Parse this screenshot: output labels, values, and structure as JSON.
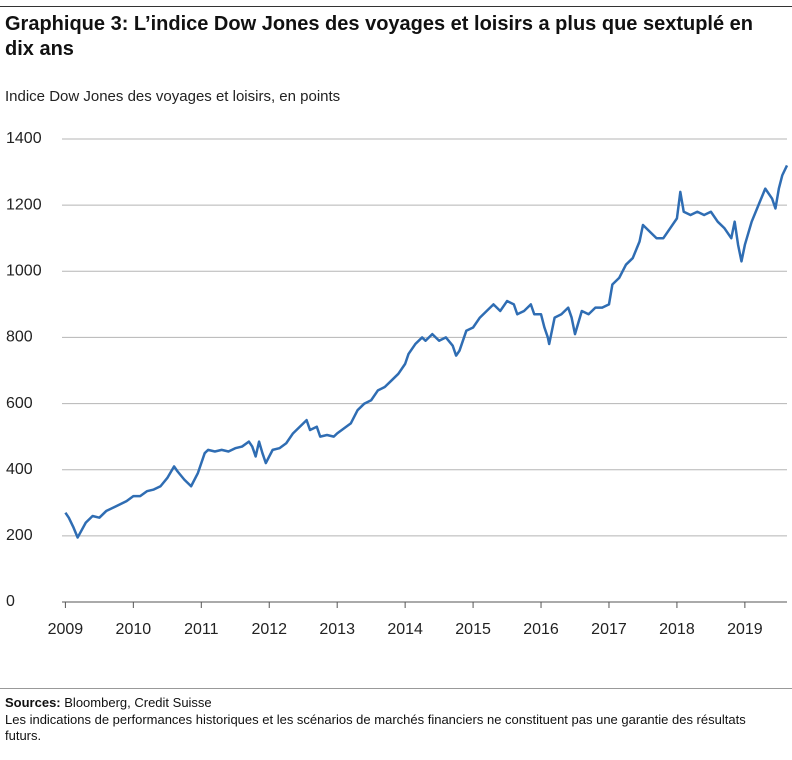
{
  "chart_data": {
    "type": "line",
    "title": "Graphique 3: L’indice Dow Jones des voyages et loisirs a plus que sextuplé en dix ans",
    "subtitle": "Indice Dow Jones des voyages et loisirs, en points",
    "x": [
      2009.0,
      2009.05,
      2009.12,
      2009.18,
      2009.22,
      2009.3,
      2009.4,
      2009.5,
      2009.6,
      2009.75,
      2009.9,
      2010.0,
      2010.1,
      2010.2,
      2010.3,
      2010.4,
      2010.5,
      2010.6,
      2010.65,
      2010.75,
      2010.85,
      2010.95,
      2011.0,
      2011.05,
      2011.1,
      2011.2,
      2011.3,
      2011.4,
      2011.5,
      2011.6,
      2011.7,
      2011.75,
      2011.8,
      2011.85,
      2011.9,
      2011.95,
      2012.0,
      2012.05,
      2012.15,
      2012.25,
      2012.35,
      2012.45,
      2012.55,
      2012.6,
      2012.7,
      2012.75,
      2012.85,
      2012.95,
      2013.0,
      2013.1,
      2013.2,
      2013.3,
      2013.4,
      2013.5,
      2013.6,
      2013.7,
      2013.8,
      2013.9,
      2014.0,
      2014.05,
      2014.15,
      2014.25,
      2014.3,
      2014.4,
      2014.5,
      2014.6,
      2014.7,
      2014.75,
      2014.8,
      2014.9,
      2015.0,
      2015.1,
      2015.2,
      2015.3,
      2015.4,
      2015.5,
      2015.6,
      2015.65,
      2015.75,
      2015.85,
      2015.9,
      2016.0,
      2016.05,
      2016.1,
      2016.12,
      2016.2,
      2016.3,
      2016.4,
      2016.45,
      2016.5,
      2016.6,
      2016.7,
      2016.8,
      2016.9,
      2017.0,
      2017.05,
      2017.15,
      2017.25,
      2017.35,
      2017.45,
      2017.5,
      2017.6,
      2017.7,
      2017.8,
      2017.9,
      2018.0,
      2018.05,
      2018.1,
      2018.2,
      2018.3,
      2018.4,
      2018.5,
      2018.6,
      2018.7,
      2018.8,
      2018.85,
      2018.9,
      2018.95,
      2019.0,
      2019.1,
      2019.2,
      2019.3,
      2019.4,
      2019.45,
      2019.5,
      2019.55,
      2019.62
    ],
    "series": [
      {
        "color": "#2f6db3",
        "values": [
          270,
          255,
          225,
          195,
          210,
          240,
          260,
          255,
          275,
          290,
          305,
          320,
          320,
          335,
          340,
          350,
          375,
          410,
          395,
          370,
          350,
          390,
          420,
          450,
          460,
          455,
          460,
          455,
          465,
          470,
          485,
          470,
          440,
          485,
          450,
          420,
          440,
          460,
          465,
          480,
          510,
          530,
          550,
          520,
          530,
          500,
          505,
          500,
          510,
          525,
          540,
          580,
          600,
          610,
          640,
          650,
          670,
          690,
          720,
          750,
          780,
          800,
          790,
          810,
          790,
          800,
          775,
          745,
          760,
          820,
          830,
          860,
          880,
          900,
          880,
          910,
          900,
          870,
          880,
          900,
          870,
          870,
          830,
          800,
          780,
          860,
          870,
          890,
          860,
          810,
          880,
          870,
          890,
          890,
          900,
          960,
          980,
          1020,
          1040,
          1090,
          1140,
          1120,
          1100,
          1100,
          1130,
          1160,
          1240,
          1180,
          1170,
          1180,
          1170,
          1180,
          1150,
          1130,
          1100,
          1150,
          1080,
          1030,
          1080,
          1150,
          1200,
          1250,
          1220,
          1190,
          1250,
          1290,
          1320
        ]
      }
    ],
    "xlim": [
      2008.95,
      2019.62
    ],
    "xticks": [
      2009,
      2010,
      2011,
      2012,
      2013,
      2014,
      2015,
      2016,
      2017,
      2018,
      2019
    ],
    "ylim": [
      0,
      1400
    ],
    "yticks": [
      0,
      200,
      400,
      600,
      800,
      1000,
      1200,
      1400
    ],
    "grid": true,
    "sources_label": "Sources:",
    "sources": "Bloomberg, Credit Suisse",
    "note": "Les indications de performances historiques et les scénarios de marchés financiers ne constituent pas une garantie des résultats futurs."
  }
}
